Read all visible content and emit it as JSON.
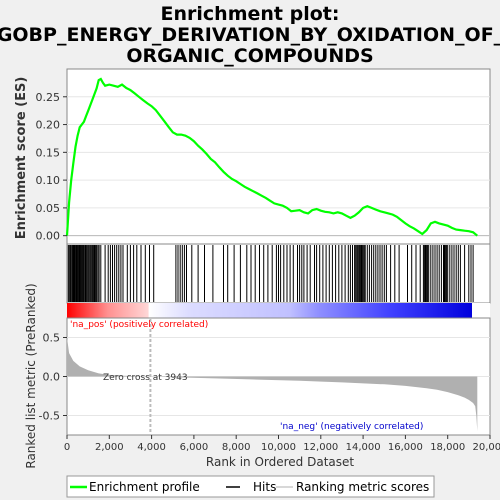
{
  "chart_data": {
    "type": "line",
    "title_line1": "Enrichment plot:",
    "title_line2": "GOBP_ENERGY_DERIVATION_BY_OXIDATION_OF_",
    "title_line3": "ORGANIC_COMPOUNDS",
    "es_panel": {
      "ylabel": "Enrichment score (ES)",
      "ylim": [
        -0.015,
        0.3
      ],
      "yticks": [
        "0.25",
        "0.20",
        "0.15",
        "0.10",
        "0.05",
        "0.00"
      ],
      "ytick_values": [
        0.25,
        0.2,
        0.15,
        0.1,
        0.05,
        0.0
      ],
      "series_name": "Enrichment profile",
      "color": "#00ff00",
      "x": [
        0,
        100,
        200,
        300,
        400,
        500,
        600,
        700,
        800,
        900,
        1000,
        1100,
        1200,
        1300,
        1400,
        1500,
        1600,
        1700,
        1800,
        2000,
        2200,
        2400,
        2600,
        2800,
        3000,
        3200,
        3400,
        3600,
        3800,
        4000,
        4200,
        4400,
        4600,
        4800,
        5000,
        5200,
        5400,
        5600,
        5800,
        6000,
        6200,
        6400,
        6600,
        6800,
        7000,
        7200,
        7400,
        7600,
        7800,
        8000,
        8200,
        8400,
        8600,
        8800,
        9000,
        9200,
        9400,
        9600,
        9800,
        10000,
        10200,
        10400,
        10600,
        10800,
        11000,
        11200,
        11400,
        11600,
        11800,
        12000,
        12200,
        12400,
        12600,
        12800,
        13000,
        13200,
        13400,
        13600,
        13800,
        14000,
        14200,
        14400,
        14600,
        14800,
        15000,
        15200,
        15400,
        15600,
        15800,
        16000,
        16200,
        16400,
        16600,
        16800,
        17000,
        17200,
        17400,
        17600,
        17800,
        18000,
        18200,
        18400,
        18600,
        18800,
        19000,
        19200,
        19400
      ],
      "y": [
        0.0,
        0.06,
        0.1,
        0.13,
        0.16,
        0.18,
        0.195,
        0.2,
        0.205,
        0.215,
        0.225,
        0.235,
        0.245,
        0.255,
        0.265,
        0.28,
        0.282,
        0.275,
        0.27,
        0.272,
        0.27,
        0.268,
        0.272,
        0.266,
        0.262,
        0.256,
        0.25,
        0.244,
        0.238,
        0.233,
        0.226,
        0.216,
        0.206,
        0.196,
        0.186,
        0.182,
        0.182,
        0.18,
        0.176,
        0.17,
        0.162,
        0.155,
        0.147,
        0.138,
        0.132,
        0.123,
        0.115,
        0.108,
        0.102,
        0.098,
        0.093,
        0.088,
        0.084,
        0.08,
        0.076,
        0.072,
        0.068,
        0.063,
        0.058,
        0.056,
        0.054,
        0.05,
        0.044,
        0.045,
        0.046,
        0.042,
        0.04,
        0.046,
        0.048,
        0.045,
        0.043,
        0.042,
        0.04,
        0.042,
        0.04,
        0.036,
        0.032,
        0.036,
        0.042,
        0.05,
        0.053,
        0.05,
        0.047,
        0.044,
        0.042,
        0.04,
        0.038,
        0.034,
        0.028,
        0.022,
        0.017,
        0.013,
        0.008,
        0.003,
        0.01,
        0.022,
        0.025,
        0.022,
        0.02,
        0.018,
        0.014,
        0.011,
        0.01,
        0.009,
        0.008,
        0.006,
        0.0
      ]
    },
    "hits": [
      60,
      110,
      160,
      200,
      250,
      290,
      330,
      370,
      410,
      450,
      490,
      530,
      570,
      610,
      650,
      690,
      730,
      770,
      810,
      860,
      900,
      950,
      1000,
      1050,
      1100,
      1150,
      1200,
      1250,
      1300,
      1350,
      1400,
      1460,
      1520,
      1600,
      1800,
      1950,
      2050,
      2150,
      2250,
      2350,
      2450,
      2550,
      2650,
      2850,
      3000,
      3150,
      3300,
      3500,
      3700,
      3900,
      4100,
      5150,
      5250,
      5350,
      5450,
      5550,
      5650,
      5900,
      6200,
      6500,
      6900,
      7400,
      7600,
      7900,
      8200,
      8500,
      8700,
      8900,
      9100,
      9300,
      9500,
      9700,
      9900,
      10000,
      10100,
      10250,
      10400,
      10550,
      10700,
      10900,
      11000,
      11100,
      11200,
      11350,
      11500,
      11700,
      11800,
      11950,
      12100,
      12250,
      12400,
      12550,
      12700,
      12850,
      13000,
      13150,
      13300,
      13400,
      13500,
      13600,
      13650,
      13700,
      13750,
      13800,
      13850,
      13900,
      13950,
      14000,
      14050,
      14100,
      14200,
      14300,
      14400,
      14500,
      14600,
      14700,
      14800,
      14900,
      15000,
      15100,
      15300,
      15500,
      15700,
      16100,
      16300,
      16500,
      16700,
      16850,
      16900,
      16950,
      17000,
      17050,
      17100,
      17200,
      17300,
      17400,
      17500,
      17600,
      17700,
      17800,
      17850,
      17900,
      17950,
      18000,
      18100,
      18200,
      18300,
      18400,
      18500,
      18600,
      18800,
      19000,
      19100,
      19200
    ],
    "metric_panel": {
      "ylabel": "Ranked list metric (PreRanked)",
      "ylim": [
        -0.75,
        0.75
      ],
      "yticks": [
        "0.5",
        "0.0",
        "-0.5"
      ],
      "ytick_values": [
        0.5,
        0.0,
        -0.5
      ],
      "series_name": "Ranking metric scores",
      "x": [
        0,
        100,
        300,
        600,
        1000,
        1500,
        2000,
        2500,
        3000,
        3500,
        3943,
        5000,
        7000,
        9000,
        11000,
        13000,
        15000,
        16000,
        17000,
        17500,
        18000,
        18500,
        18800,
        19000,
        19200,
        19300,
        19350,
        19400
      ],
      "y": [
        0.5,
        0.3,
        0.2,
        0.13,
        0.08,
        0.04,
        0.02,
        0.012,
        0.006,
        0.002,
        0.0,
        -0.01,
        -0.025,
        -0.04,
        -0.055,
        -0.075,
        -0.1,
        -0.12,
        -0.15,
        -0.17,
        -0.2,
        -0.24,
        -0.27,
        -0.3,
        -0.34,
        -0.38,
        -0.5,
        -0.7
      ],
      "zero_cross_label": "Zero cross at 3943",
      "zero_cross": 3943,
      "pos_label": "'na_pos' (positively correlated)",
      "neg_label": "'na_neg' (negatively correlated)"
    },
    "xlabel": "Rank in Ordered Dataset",
    "xlim": [
      0,
      20000
    ],
    "xticks": [
      "0",
      "2,000",
      "4,000",
      "6,000",
      "8,000",
      "10,000",
      "12,000",
      "14,000",
      "16,000",
      "18,000",
      "20,000"
    ],
    "xtick_values": [
      0,
      2000,
      4000,
      6000,
      8000,
      10000,
      12000,
      14000,
      16000,
      18000,
      20000
    ],
    "n_genes": 19400,
    "legend": {
      "placement": "bottom",
      "items": [
        "Enrichment profile",
        "Hits",
        "Ranking metric scores"
      ]
    },
    "colors": {
      "es_line": "#00ff00",
      "hits": "#000000",
      "metric_fill": "#b0b0b0",
      "pos_text": "#ff0000",
      "neg_text": "#0000cc",
      "heat_pos": "#ff0000",
      "heat_neg": "#0000ff"
    }
  }
}
